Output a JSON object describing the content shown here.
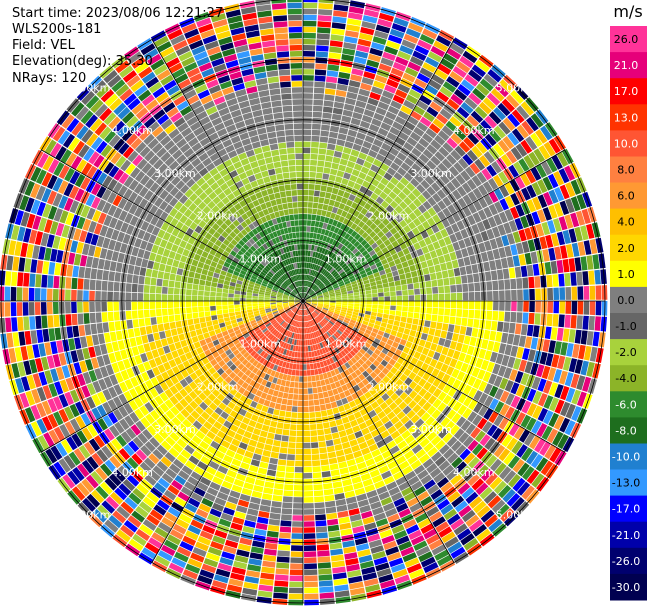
{
  "header": {
    "start_time": "Start time: 2023/08/06 12:21:27",
    "instrument": "WLS200s-181",
    "field": "Field: VEL",
    "elevation": "Elevation(deg): 35.30",
    "nrays": "NRays: 120"
  },
  "chart_data": {
    "type": "heatmap",
    "projection": "polar PPI",
    "field": "VEL",
    "units": "m/s",
    "nrays": 120,
    "elevation_deg": 35.3,
    "range_rings_km": [
      1.0,
      2.0,
      3.0,
      4.0,
      5.0
    ],
    "ring_labels": [
      "1.00km",
      "2.00km",
      "3.00km",
      "4.00km",
      "5.00km"
    ],
    "max_range_km": 5.0,
    "azimuth_lines_deg": [
      0,
      30,
      60,
      90,
      120,
      150,
      180,
      210,
      240,
      270,
      300,
      330
    ],
    "colorbar": {
      "title": "m/s",
      "ticks": [
        "26.0",
        "21.0",
        "17.0",
        "13.0",
        "10.0",
        "8.0",
        "6.0",
        "4.0",
        "2.0",
        "1.0",
        "0.0",
        "-1.0",
        "-2.0",
        "-4.0",
        "-6.0",
        "-8.0",
        "-10.0",
        "-13.0",
        "-17.0",
        "-21.0",
        "-26.0",
        "-30.0"
      ],
      "colors": [
        "#ff3399",
        "#e6007a",
        "#ff0000",
        "#ff3300",
        "#ff5533",
        "#ff8040",
        "#ff9933",
        "#ffbf00",
        "#ffd700",
        "#ffff00",
        "#7f7f7f",
        "#666666",
        "#a8d23c",
        "#8cb428",
        "#2e8b2e",
        "#1e6e1e",
        "#2080d0",
        "#3399ff",
        "#0000ff",
        "#0000aa",
        "#00006e",
        "#000050"
      ]
    },
    "velocity_structure": [
      {
        "range_km": [
          0.0,
          0.9
        ],
        "az_deg": [
          300,
          60
        ],
        "value": -8.0
      },
      {
        "range_km": [
          0.0,
          1.4
        ],
        "az_deg": [
          290,
          70
        ],
        "value": -6.0
      },
      {
        "range_km": [
          0.0,
          2.0
        ],
        "az_deg": [
          280,
          80
        ],
        "value": -4.0
      },
      {
        "range_km": [
          0.0,
          2.6
        ],
        "az_deg": [
          270,
          90
        ],
        "value": -2.0
      },
      {
        "range_km": [
          0.0,
          1.2
        ],
        "az_deg": [
          120,
          240
        ],
        "value": 10.0
      },
      {
        "range_km": [
          0.0,
          1.8
        ],
        "az_deg": [
          110,
          250
        ],
        "value": 6.0
      },
      {
        "range_km": [
          0.0,
          2.7
        ],
        "az_deg": [
          100,
          260
        ],
        "value": 2.0
      },
      {
        "range_km": [
          0.0,
          3.3
        ],
        "az_deg": [
          90,
          270
        ],
        "value": 1.0
      }
    ],
    "noise_beyond_km": 3.4
  }
}
